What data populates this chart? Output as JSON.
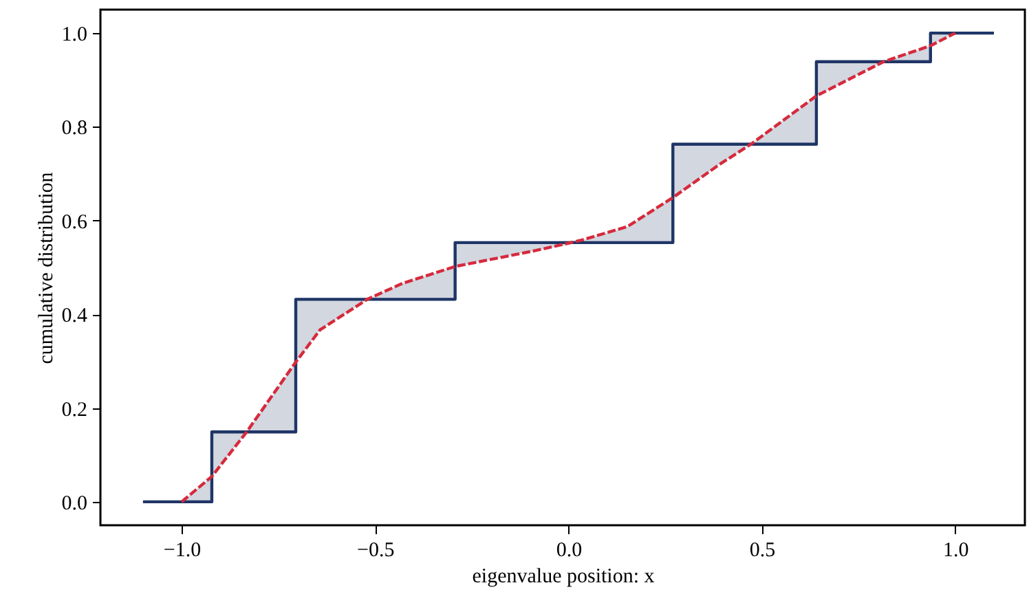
{
  "chart_data": {
    "type": "line",
    "xlabel": "eigenvalue position: x",
    "ylabel": "cumulative distribution",
    "xlim": [
      -1.21,
      1.18
    ],
    "ylim": [
      -0.05,
      1.05
    ],
    "xticks": [
      {
        "value": -1.0,
        "label": "−1.0"
      },
      {
        "value": -0.5,
        "label": "−0.5"
      },
      {
        "value": 0.0,
        "label": "0.0"
      },
      {
        "value": 0.5,
        "label": "0.5"
      },
      {
        "value": 1.0,
        "label": "1.0"
      }
    ],
    "yticks": [
      {
        "value": 0.0,
        "label": "0.0"
      },
      {
        "value": 0.2,
        "label": "0.2"
      },
      {
        "value": 0.4,
        "label": "0.4"
      },
      {
        "value": 0.6,
        "label": "0.6"
      },
      {
        "value": 0.8,
        "label": "0.8"
      },
      {
        "value": 1.0,
        "label": "1.0"
      }
    ],
    "grid": false,
    "series": [
      {
        "type": "step",
        "color": "#1f3566",
        "line_style": "solid",
        "x": [
          -1.1,
          -0.922,
          -0.705,
          -0.293,
          0.27,
          0.641,
          0.936,
          1.1
        ],
        "values": [
          0,
          0.149,
          0.432,
          0.553,
          0.763,
          0.939,
          1.0,
          1.0
        ]
      },
      {
        "color": "#d62a3c",
        "line_style": "dashed",
        "x": [
          -1.0,
          -0.922,
          -0.922,
          -0.832,
          -0.705,
          -0.705,
          -0.642,
          -0.518,
          -0.429,
          -0.293,
          -0.293,
          -0.085,
          0.033,
          0.152,
          0.27,
          0.27,
          0.389,
          0.472,
          0.641,
          0.641,
          0.815,
          0.936,
          0.936,
          1.0
        ],
        "values": [
          0,
          0.054,
          0.054,
          0.149,
          0.298,
          0.298,
          0.367,
          0.433,
          0.466,
          0.502,
          0.502,
          0.536,
          0.558,
          0.587,
          0.649,
          0.649,
          0.719,
          0.763,
          0.866,
          0.866,
          0.939,
          0.973,
          0.973,
          1.0
        ],
        "lower": [
          0,
          0,
          0.054,
          0.149,
          0.149,
          0.298,
          0.367,
          0.432,
          0.432,
          0.432,
          0.502,
          0.536,
          0.553,
          0.553,
          0.553,
          0.649,
          0.719,
          0.763,
          0.763,
          0.866,
          0.939,
          0.939,
          0.973,
          1.0
        ],
        "upper": [
          0,
          0.054,
          0.149,
          0.149,
          0.298,
          0.432,
          0.432,
          0.433,
          0.466,
          0.502,
          0.553,
          0.553,
          0.558,
          0.587,
          0.649,
          0.763,
          0.763,
          0.763,
          0.866,
          0.939,
          0.939,
          0.973,
          1.0,
          1.0
        ]
      }
    ]
  }
}
